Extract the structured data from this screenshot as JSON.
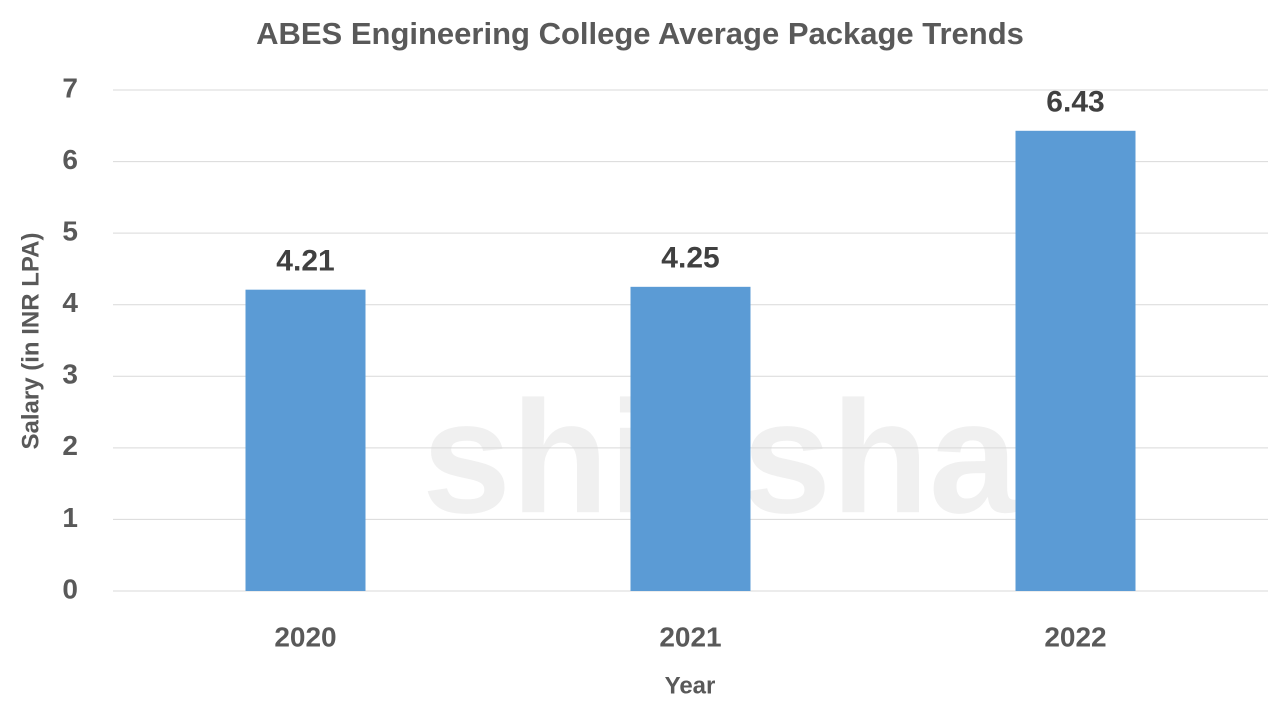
{
  "chart_data": {
    "type": "bar",
    "title": "ABES Engineering College Average Package Trends",
    "y_label": "Salary (in INR LPA)",
    "x_label": "Year",
    "watermark": "shiksha",
    "categories": [
      "2020",
      "2021",
      "2022"
    ],
    "values": [
      4.21,
      4.25,
      6.43
    ],
    "color": "#5b9bd5",
    "ylim": [
      0,
      7
    ],
    "yticks": [
      0,
      1,
      2,
      3,
      4,
      5,
      6,
      7
    ],
    "grid": true
  }
}
